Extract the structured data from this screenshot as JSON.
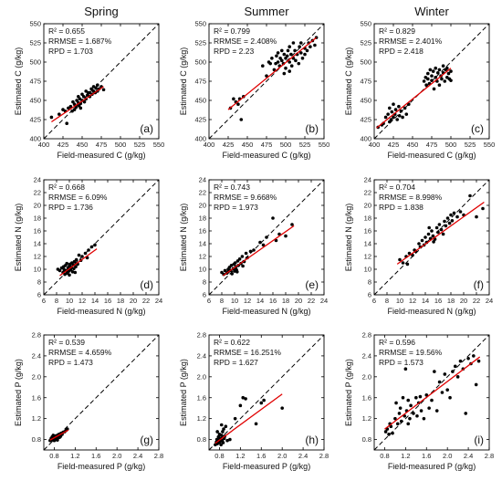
{
  "column_titles": [
    "Spring",
    "Summer",
    "Winter"
  ],
  "colors": {
    "points": "#000000",
    "fit_line": "#e00000",
    "identity_line": "#000000"
  },
  "chart_data": [
    {
      "id": "a",
      "type": "scatter",
      "row": 0,
      "col": 0,
      "panel_label": "(a)",
      "xlabel": "Field-measured C (g/kg)",
      "ylabel": "Estimated C (g/kg)",
      "xlim": [
        400,
        550
      ],
      "ylim": [
        400,
        550
      ],
      "ticks": [
        400,
        425,
        450,
        475,
        500,
        525,
        550
      ],
      "stats": [
        "R² = 0.655",
        "RRMSE = 1.687%",
        "RPD = 1.703"
      ],
      "fit": {
        "x": [
          410,
          478
        ],
        "y": [
          422,
          468
        ]
      },
      "points": {
        "x": [
          410,
          420,
          425,
          430,
          432,
          435,
          437,
          438,
          440,
          440,
          442,
          443,
          445,
          445,
          446,
          447,
          448,
          450,
          450,
          452,
          453,
          455,
          455,
          457,
          458,
          460,
          460,
          462,
          463,
          465,
          465,
          467,
          468,
          470,
          470,
          472,
          475,
          478,
          428,
          448
        ],
        "y": [
          428,
          432,
          438,
          420,
          440,
          442,
          436,
          448,
          445,
          438,
          441,
          450,
          447,
          455,
          443,
          452,
          446,
          450,
          458,
          455,
          448,
          462,
          452,
          457,
          460,
          460,
          455,
          465,
          458,
          462,
          468,
          460,
          466,
          462,
          470,
          465,
          468,
          464,
          436,
          440
        ]
      }
    },
    {
      "id": "b",
      "type": "scatter",
      "row": 0,
      "col": 1,
      "panel_label": "(b)",
      "xlabel": "Field-measured C (g/kg)",
      "ylabel": "Estimated C (g/kg)",
      "xlim": [
        400,
        550
      ],
      "ylim": [
        400,
        550
      ],
      "ticks": [
        400,
        425,
        450,
        475,
        500,
        525,
        550
      ],
      "stats": [
        "R² = 0.799",
        "RRMSE = 2.408%",
        "RPD = 2.23"
      ],
      "fit": {
        "x": [
          425,
          540
        ],
        "y": [
          438,
          532
        ]
      },
      "points": {
        "x": [
          428,
          432,
          435,
          438,
          440,
          442,
          445,
          470,
          475,
          478,
          480,
          482,
          485,
          487,
          488,
          490,
          490,
          492,
          493,
          495,
          495,
          497,
          498,
          500,
          500,
          502,
          503,
          505,
          505,
          507,
          508,
          510,
          510,
          512,
          513,
          515,
          517,
          518,
          520,
          520,
          522,
          525,
          525,
          528,
          530,
          532,
          535,
          538,
          540,
          498,
          505
        ],
        "y": [
          440,
          452,
          448,
          445,
          452,
          425,
          455,
          495,
          482,
          500,
          498,
          505,
          490,
          498,
          508,
          500,
          512,
          495,
          505,
          502,
          515,
          498,
          510,
          505,
          492,
          508,
          515,
          500,
          520,
          510,
          495,
          505,
          525,
          515,
          502,
          510,
          498,
          520,
          512,
          525,
          505,
          518,
          510,
          515,
          525,
          520,
          528,
          522,
          532,
          485,
          488
        ]
      }
    },
    {
      "id": "c",
      "type": "scatter",
      "row": 0,
      "col": 2,
      "panel_label": "(c)",
      "xlabel": "Field-measured C (g/kg)",
      "ylabel": "Estimated C (g/kg)",
      "xlim": [
        400,
        550
      ],
      "ylim": [
        400,
        550
      ],
      "ticks": [
        400,
        425,
        450,
        475,
        500,
        525,
        550
      ],
      "stats": [
        "R² = 0.829",
        "RRMSE = 2.401%",
        "RPD = 2.418"
      ],
      "fit": {
        "x": [
          403,
          500
        ],
        "y": [
          414,
          492
        ]
      },
      "points": {
        "x": [
          405,
          410,
          412,
          415,
          418,
          420,
          420,
          422,
          423,
          425,
          425,
          427,
          428,
          430,
          432,
          433,
          435,
          437,
          440,
          442,
          445,
          465,
          467,
          468,
          470,
          470,
          472,
          473,
          475,
          475,
          477,
          478,
          480,
          480,
          482,
          483,
          485,
          485,
          487,
          488,
          490,
          490,
          492,
          493,
          495,
          495,
          497,
          498,
          500,
          500
        ],
        "y": [
          415,
          418,
          420,
          428,
          432,
          422,
          440,
          425,
          435,
          428,
          445,
          432,
          438,
          425,
          442,
          430,
          436,
          428,
          440,
          432,
          445,
          475,
          480,
          470,
          485,
          478,
          472,
          490,
          482,
          476,
          488,
          465,
          480,
          492,
          475,
          486,
          470,
          490,
          482,
          478,
          495,
          486,
          475,
          490,
          480,
          492,
          485,
          478,
          488,
          476
        ]
      }
    },
    {
      "id": "d",
      "type": "scatter",
      "row": 1,
      "col": 0,
      "panel_label": "(d)",
      "xlabel": "Field-measured N (g/kg)",
      "ylabel": "Estimated N (g/kg)",
      "xlim": [
        6,
        24
      ],
      "ylim": [
        6,
        24
      ],
      "ticks": [
        6,
        8,
        10,
        12,
        14,
        16,
        18,
        20,
        22,
        24
      ],
      "stats": [
        "R² = 0.668",
        "RRMSE = 6.09%",
        "RPD = 1.736"
      ],
      "fit": {
        "x": [
          8.5,
          14.3
        ],
        "y": [
          9.0,
          13.2
        ]
      },
      "points": {
        "x": [
          8.2,
          8.5,
          8.8,
          9.0,
          9.1,
          9.3,
          9.4,
          9.5,
          9.6,
          9.7,
          9.8,
          9.9,
          10.0,
          10.0,
          10.1,
          10.2,
          10.3,
          10.4,
          10.5,
          10.6,
          10.7,
          10.8,
          11.0,
          11.1,
          11.3,
          11.5,
          11.8,
          12.0,
          12.5,
          12.8,
          13.0,
          13.5,
          14.0,
          9.2,
          10.9
        ],
        "y": [
          10.0,
          9.8,
          10.2,
          9.5,
          10.4,
          9.2,
          10.6,
          9.8,
          10.9,
          9.4,
          10.2,
          9.7,
          10.5,
          9.1,
          10.8,
          9.9,
          10.3,
          11.0,
          9.6,
          10.7,
          10.1,
          11.2,
          10.4,
          11.5,
          10.8,
          12.2,
          11.4,
          12.0,
          12.5,
          11.8,
          13.0,
          13.5,
          13.8,
          9.9,
          9.5
        ]
      }
    },
    {
      "id": "e",
      "type": "scatter",
      "row": 1,
      "col": 1,
      "panel_label": "(e)",
      "xlabel": "Field-measured N (g/kg)",
      "ylabel": "Estimated N (g/kg)",
      "xlim": [
        6,
        24
      ],
      "ylim": [
        6,
        24
      ],
      "ticks": [
        6,
        8,
        10,
        12,
        14,
        16,
        18,
        20,
        22,
        24
      ],
      "stats": [
        "R² = 0.743",
        "RRMSE = 9.668%",
        "RPD = 1.973"
      ],
      "fit": {
        "x": [
          8.2,
          19.3
        ],
        "y": [
          9.0,
          16.8
        ]
      },
      "points": {
        "x": [
          8.0,
          8.3,
          8.5,
          8.8,
          9.0,
          9.0,
          9.2,
          9.4,
          9.5,
          9.6,
          9.8,
          9.9,
          10.0,
          10.1,
          10.2,
          10.3,
          10.5,
          10.6,
          10.8,
          11.0,
          11.2,
          11.5,
          11.8,
          12.0,
          12.5,
          13.0,
          14.0,
          14.5,
          15.0,
          16.0,
          16.5,
          17.0,
          18.0,
          19.0,
          10.4,
          11.3
        ],
        "y": [
          9.5,
          9.2,
          9.8,
          9.4,
          10.0,
          9.6,
          10.3,
          9.8,
          10.6,
          9.3,
          10.1,
          10.8,
          9.7,
          11.0,
          10.4,
          9.9,
          11.3,
          10.6,
          11.6,
          10.9,
          12.0,
          11.2,
          12.5,
          11.8,
          12.8,
          13.0,
          14.2,
          13.8,
          15.0,
          18.0,
          14.5,
          15.5,
          15.2,
          17.0,
          9.6,
          10.5
        ]
      }
    },
    {
      "id": "f",
      "type": "scatter",
      "row": 1,
      "col": 2,
      "panel_label": "(f)",
      "xlabel": "Field-measured N (g/kg)",
      "ylabel": "Estimated N (g/kg)",
      "xlim": [
        6,
        24
      ],
      "ylim": [
        6,
        24
      ],
      "ticks": [
        6,
        8,
        10,
        12,
        14,
        16,
        18,
        20,
        22,
        24
      ],
      "stats": [
        "R² = 0.704",
        "RRMSE = 8.998%",
        "RPD = 1.838"
      ],
      "fit": {
        "x": [
          9.6,
          23.2
        ],
        "y": [
          10.8,
          20.5
        ]
      },
      "points": {
        "x": [
          10.0,
          10.5,
          11.0,
          11.2,
          11.5,
          12.0,
          12.3,
          12.5,
          13.0,
          13.2,
          13.5,
          13.8,
          14.0,
          14.2,
          14.5,
          14.8,
          15.0,
          15.2,
          15.5,
          15.8,
          16.0,
          16.2,
          16.5,
          16.8,
          17.0,
          17.2,
          17.5,
          17.8,
          18.0,
          18.2,
          18.5,
          19.0,
          19.5,
          20.0,
          21.0,
          22.0,
          23.0,
          14.6,
          15.3
        ],
        "y": [
          11.5,
          11.0,
          12.0,
          10.8,
          12.5,
          12.2,
          13.0,
          12.8,
          14.0,
          13.5,
          14.5,
          13.8,
          15.0,
          14.2,
          15.5,
          14.8,
          16.0,
          15.2,
          14.7,
          16.5,
          15.8,
          17.0,
          16.2,
          15.5,
          17.5,
          16.8,
          18.0,
          17.2,
          18.5,
          17.6,
          18.8,
          18.2,
          19.0,
          18.5,
          21.5,
          18.2,
          19.5,
          16.5,
          14.3
        ]
      }
    },
    {
      "id": "g",
      "type": "scatter",
      "row": 2,
      "col": 0,
      "panel_label": "(g)",
      "xlabel": "Field-measured P (g/kg)",
      "ylabel": "Estimated P (g/kg)",
      "xlim": [
        0.6,
        2.8
      ],
      "ylim": [
        0.6,
        2.8
      ],
      "ticks": [
        0.8,
        1.2,
        1.6,
        2.0,
        2.4,
        2.8
      ],
      "stats": [
        "R² = 0.539",
        "RRMSE = 4.659%",
        "RPD = 1.473"
      ],
      "fit": {
        "x": [
          0.72,
          1.07
        ],
        "y": [
          0.79,
          0.98
        ]
      },
      "points": {
        "x": [
          0.72,
          0.74,
          0.75,
          0.76,
          0.77,
          0.78,
          0.79,
          0.8,
          0.8,
          0.81,
          0.82,
          0.83,
          0.84,
          0.85,
          0.86,
          0.87,
          0.88,
          0.89,
          0.9,
          0.91,
          0.92,
          0.93,
          0.95,
          0.97,
          1.0,
          1.03,
          1.05,
          0.78,
          0.86
        ],
        "y": [
          0.78,
          0.82,
          0.8,
          0.85,
          0.79,
          0.83,
          0.81,
          0.86,
          0.78,
          0.84,
          0.82,
          0.87,
          0.8,
          0.85,
          0.88,
          0.83,
          0.86,
          0.9,
          0.84,
          0.88,
          0.86,
          0.92,
          0.9,
          0.94,
          0.95,
          0.98,
          1.0,
          0.88,
          0.79
        ]
      }
    },
    {
      "id": "h",
      "type": "scatter",
      "row": 2,
      "col": 1,
      "panel_label": "(h)",
      "xlabel": "Field-measured P (g/kg)",
      "ylabel": "Estimated P (g/kg)",
      "xlim": [
        0.6,
        2.8
      ],
      "ylim": [
        0.6,
        2.8
      ],
      "ticks": [
        0.8,
        1.2,
        1.6,
        2.0,
        2.4,
        2.8
      ],
      "stats": [
        "R² = 0.622",
        "RRMSE = 16.251%",
        "RPD = 1.627"
      ],
      "fit": {
        "x": [
          0.72,
          2.0
        ],
        "y": [
          0.73,
          1.67
        ]
      },
      "points": {
        "x": [
          0.72,
          0.74,
          0.75,
          0.76,
          0.77,
          0.78,
          0.79,
          0.8,
          0.8,
          0.81,
          0.82,
          0.83,
          0.84,
          0.85,
          0.86,
          0.87,
          0.88,
          0.89,
          0.9,
          0.92,
          0.95,
          1.0,
          1.1,
          1.2,
          1.25,
          1.3,
          1.5,
          1.6,
          1.65,
          2.0,
          0.76,
          0.84
        ],
        "y": [
          0.7,
          0.75,
          0.8,
          0.72,
          0.78,
          0.85,
          0.74,
          0.8,
          0.9,
          0.76,
          0.82,
          0.7,
          0.88,
          0.78,
          0.95,
          0.74,
          1.0,
          0.82,
          0.86,
          1.05,
          0.78,
          0.8,
          1.2,
          1.45,
          1.6,
          1.58,
          1.1,
          1.5,
          1.55,
          1.4,
          0.95,
          1.08
        ]
      }
    },
    {
      "id": "i",
      "type": "scatter",
      "row": 2,
      "col": 2,
      "panel_label": "(i)",
      "xlabel": "Field-measured P (g/kg)",
      "ylabel": "Estimated P (g/kg)",
      "xlim": [
        0.6,
        2.8
      ],
      "ylim": [
        0.6,
        2.8
      ],
      "ticks": [
        0.8,
        1.2,
        1.6,
        2.0,
        2.4,
        2.8
      ],
      "stats": [
        "R² = 0.596",
        "RRMSE = 19.56%",
        "RPD = 1.573"
      ],
      "fit": {
        "x": [
          0.8,
          2.62
        ],
        "y": [
          1.0,
          2.38
        ]
      },
      "points": {
        "x": [
          0.82,
          0.85,
          0.88,
          0.9,
          0.92,
          0.95,
          1.0,
          1.02,
          1.05,
          1.08,
          1.1,
          1.12,
          1.15,
          1.18,
          1.2,
          1.22,
          1.25,
          1.28,
          1.3,
          1.35,
          1.4,
          1.42,
          1.45,
          1.5,
          1.55,
          1.6,
          1.65,
          1.7,
          1.75,
          1.8,
          1.85,
          1.9,
          1.95,
          2.0,
          2.05,
          2.1,
          2.15,
          2.2,
          2.25,
          2.3,
          2.35,
          2.4,
          2.45,
          2.5,
          2.55,
          2.6,
          1.25,
          1.48
        ],
        "y": [
          0.95,
          1.0,
          0.9,
          1.1,
          1.05,
          0.92,
          1.2,
          1.5,
          1.1,
          1.3,
          1.4,
          1.15,
          1.6,
          1.25,
          2.15,
          1.35,
          1.55,
          1.2,
          1.45,
          1.3,
          1.6,
          1.25,
          1.5,
          1.35,
          1.2,
          1.65,
          1.4,
          1.55,
          2.1,
          1.35,
          1.9,
          1.7,
          2.05,
          1.75,
          1.6,
          2.1,
          2.2,
          2.0,
          2.3,
          2.15,
          1.3,
          2.35,
          2.25,
          2.4,
          1.85,
          2.3,
          1.1,
          1.62
        ]
      }
    }
  ]
}
